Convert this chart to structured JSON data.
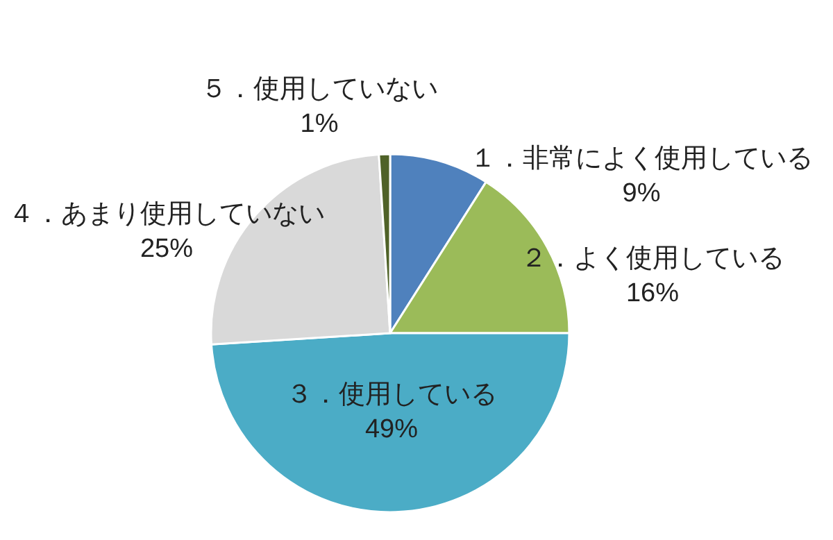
{
  "chart_data": {
    "type": "pie",
    "categories": [
      "１．非常によく使用している",
      "２．よく使用している",
      "３．使用している",
      "４．あまり使用していない",
      "５．使用していない"
    ],
    "values": [
      9,
      16,
      49,
      25,
      1
    ],
    "colors": [
      "#4f81bd",
      "#9bbb59",
      "#4bacc6",
      "#d9d9d9",
      "#4f6228"
    ],
    "value_labels": [
      "9%",
      "16%",
      "49%",
      "25%",
      "1%"
    ],
    "legend": false
  }
}
